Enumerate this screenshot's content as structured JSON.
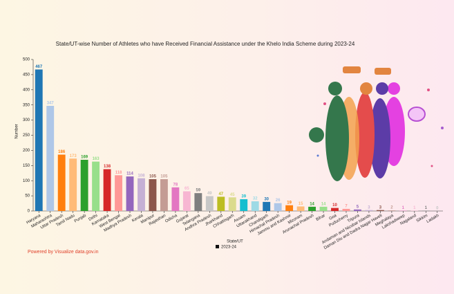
{
  "chart_data": {
    "type": "bar",
    "title": "State/UT-wise Number of Athletes who have Received Financial Assistance under the Khelo India Scheme during 2023-24",
    "x_label": "State/UT",
    "y_label": "Number",
    "categories": [
      "Haryana",
      "Maharashtra",
      "Uttar Pradesh",
      "Tamil Nadu",
      "Punjab",
      "Delhi",
      "Karnataka",
      "West Bengal",
      "Madhya Pradesh",
      "Kerala",
      "Manipur",
      "Rajasthan",
      "Odisha",
      "Gujarat",
      "Telangana",
      "Andhra Pradesh",
      "Jharkhand",
      "Chhattisgarh",
      "Assam",
      "Uttarakhand",
      "Chandigarh",
      "Himachal Pradesh",
      "Jammu and Kashmir",
      "Mizoram",
      "Arunachal Pradesh",
      "Bihar",
      "Goa",
      "Puducherry",
      "Tripura",
      "Andaman and Nicobar Islands",
      "Daman Diu and Dadra Nagar Haveli",
      "Meghalaya",
      "Lakshadweep",
      "Nagaland",
      "Sikkim",
      "Ladakh"
    ],
    "series": [
      {
        "name": "2023-24",
        "color": "#111111",
        "values": [
          467,
          347,
          186,
          173,
          169,
          163,
          138,
          118,
          114,
          108,
          105,
          105,
          78,
          65,
          59,
          49,
          47,
          45,
          39,
          32,
          30,
          26,
          19,
          15,
          14,
          14,
          10,
          7,
          5,
          3,
          3,
          2,
          1,
          1,
          1,
          0
        ],
        "bar_colors": [
          "#1f77b4",
          "#aec7e8",
          "#ff7f0e",
          "#ffbb78",
          "#2ca02c",
          "#98df8a",
          "#d62728",
          "#ff9896",
          "#9467bd",
          "#c5b0d5",
          "#8c564b",
          "#c49c94",
          "#e377c2",
          "#f7b6d2",
          "#7f7f7f",
          "#c7c7c7",
          "#bcbd22",
          "#dbdb8d",
          "#17becf",
          "#9edae5",
          "#1f77b4",
          "#aec7e8",
          "#ff7f0e",
          "#ffbb78",
          "#2ca02c",
          "#98df8a",
          "#d62728",
          "#ff9896",
          "#9467bd",
          "#c5b0d5",
          "#8c564b",
          "#c49c94",
          "#e377c2",
          "#f7b6d2",
          "#7f7f7f",
          "#c7c7c7"
        ]
      }
    ],
    "ylim": [
      0,
      500
    ],
    "yticks": [
      0,
      50,
      100,
      150,
      200,
      250,
      300,
      350,
      400,
      450,
      500
    ],
    "footer": "Powered by Visualize data.gov.in"
  }
}
